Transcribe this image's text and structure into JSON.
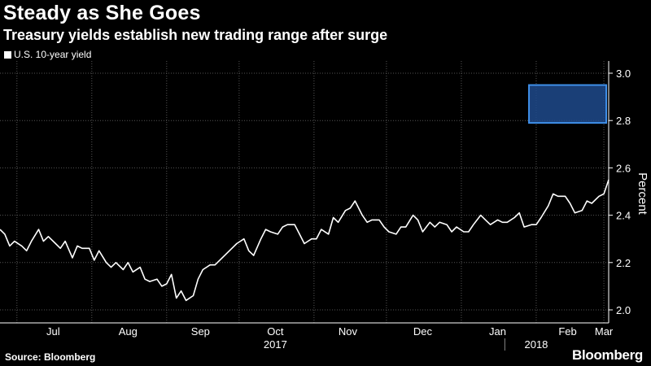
{
  "header": {
    "title": "Steady as She Goes",
    "subtitle": "Treasury yields establish new trading range after surge"
  },
  "legend": {
    "label": "U.S. 10-year yield"
  },
  "footer": {
    "source": "Source: Bloomberg",
    "brand": "Bloomberg"
  },
  "colors": {
    "background": "#000000",
    "line": "#ffffff",
    "grid": "#555555",
    "highlight_fill": "#1e4a8c",
    "highlight_stroke": "#3f8fe8"
  },
  "chart_data": {
    "type": "line",
    "title": "Steady as She Goes",
    "subtitle": "Treasury yields establish new trading range after surge",
    "ylabel": "Percent",
    "ylim": [
      2.0,
      3.0
    ],
    "yticks": [
      "2.0",
      "2.2",
      "2.4",
      "2.6",
      "2.8",
      "3.0"
    ],
    "xlim": [
      "2017-06-24",
      "2018-03-03"
    ],
    "grid": true,
    "legend_position": "top-left",
    "month_labels": [
      {
        "label": "Jul",
        "date": "2017-07-16"
      },
      {
        "label": "Aug",
        "date": "2017-08-16"
      },
      {
        "label": "Sep",
        "date": "2017-09-15"
      },
      {
        "label": "Oct",
        "date": "2017-10-16"
      },
      {
        "label": "Nov",
        "date": "2017-11-15"
      },
      {
        "label": "Dec",
        "date": "2017-12-16"
      },
      {
        "label": "Jan",
        "date": "2018-01-16"
      },
      {
        "label": "Feb",
        "date": "2018-02-14"
      },
      {
        "label": "Mar",
        "date": "2018-03-01"
      }
    ],
    "year_labels": [
      {
        "label": "2017",
        "date": "2017-10-16"
      },
      {
        "label": "2018",
        "date": "2018-02-01"
      }
    ],
    "year_divider": "2018-01-19",
    "highlight_range": {
      "start": "2018-01-29",
      "end": "2018-03-02",
      "ymin": 2.79,
      "ymax": 2.95
    },
    "series": [
      {
        "name": "U.S. 10-year yield",
        "points": [
          [
            "2017-06-24",
            2.34
          ],
          [
            "2017-06-26",
            2.32
          ],
          [
            "2017-06-28",
            2.27
          ],
          [
            "2017-06-30",
            2.29
          ],
          [
            "2017-07-03",
            2.27
          ],
          [
            "2017-07-05",
            2.25
          ],
          [
            "2017-07-07",
            2.29
          ],
          [
            "2017-07-10",
            2.34
          ],
          [
            "2017-07-12",
            2.29
          ],
          [
            "2017-07-14",
            2.31
          ],
          [
            "2017-07-17",
            2.28
          ],
          [
            "2017-07-19",
            2.26
          ],
          [
            "2017-07-21",
            2.29
          ],
          [
            "2017-07-24",
            2.22
          ],
          [
            "2017-07-26",
            2.27
          ],
          [
            "2017-07-28",
            2.26
          ],
          [
            "2017-07-31",
            2.26
          ],
          [
            "2017-08-02",
            2.21
          ],
          [
            "2017-08-04",
            2.25
          ],
          [
            "2017-08-07",
            2.2
          ],
          [
            "2017-08-09",
            2.18
          ],
          [
            "2017-08-11",
            2.2
          ],
          [
            "2017-08-14",
            2.17
          ],
          [
            "2017-08-16",
            2.2
          ],
          [
            "2017-08-18",
            2.16
          ],
          [
            "2017-08-21",
            2.18
          ],
          [
            "2017-08-23",
            2.13
          ],
          [
            "2017-08-25",
            2.12
          ],
          [
            "2017-08-28",
            2.13
          ],
          [
            "2017-08-30",
            2.1
          ],
          [
            "2017-09-01",
            2.11
          ],
          [
            "2017-09-03",
            2.15
          ],
          [
            "2017-09-05",
            2.05
          ],
          [
            "2017-09-07",
            2.08
          ],
          [
            "2017-09-09",
            2.04
          ],
          [
            "2017-09-12",
            2.06
          ],
          [
            "2017-09-14",
            2.13
          ],
          [
            "2017-09-16",
            2.17
          ],
          [
            "2017-09-19",
            2.19
          ],
          [
            "2017-09-21",
            2.19
          ],
          [
            "2017-09-23",
            2.21
          ],
          [
            "2017-09-26",
            2.24
          ],
          [
            "2017-09-28",
            2.26
          ],
          [
            "2017-09-30",
            2.28
          ],
          [
            "2017-10-03",
            2.3
          ],
          [
            "2017-10-05",
            2.25
          ],
          [
            "2017-10-07",
            2.23
          ],
          [
            "2017-10-10",
            2.3
          ],
          [
            "2017-10-12",
            2.34
          ],
          [
            "2017-10-14",
            2.33
          ],
          [
            "2017-10-17",
            2.32
          ],
          [
            "2017-10-19",
            2.35
          ],
          [
            "2017-10-21",
            2.36
          ],
          [
            "2017-10-24",
            2.36
          ],
          [
            "2017-10-26",
            2.32
          ],
          [
            "2017-10-28",
            2.28
          ],
          [
            "2017-10-31",
            2.3
          ],
          [
            "2017-11-02",
            2.3
          ],
          [
            "2017-11-04",
            2.34
          ],
          [
            "2017-11-07",
            2.32
          ],
          [
            "2017-11-09",
            2.39
          ],
          [
            "2017-11-11",
            2.37
          ],
          [
            "2017-11-14",
            2.42
          ],
          [
            "2017-11-16",
            2.43
          ],
          [
            "2017-11-18",
            2.46
          ],
          [
            "2017-11-21",
            2.4
          ],
          [
            "2017-11-23",
            2.37
          ],
          [
            "2017-11-25",
            2.38
          ],
          [
            "2017-11-28",
            2.38
          ],
          [
            "2017-11-30",
            2.35
          ],
          [
            "2017-12-02",
            2.33
          ],
          [
            "2017-12-05",
            2.32
          ],
          [
            "2017-12-07",
            2.35
          ],
          [
            "2017-12-09",
            2.35
          ],
          [
            "2017-12-12",
            2.4
          ],
          [
            "2017-12-14",
            2.38
          ],
          [
            "2017-12-16",
            2.33
          ],
          [
            "2017-12-19",
            2.37
          ],
          [
            "2017-12-21",
            2.35
          ],
          [
            "2017-12-23",
            2.37
          ],
          [
            "2017-12-26",
            2.36
          ],
          [
            "2017-12-28",
            2.33
          ],
          [
            "2017-12-30",
            2.35
          ],
          [
            "2018-01-02",
            2.33
          ],
          [
            "2018-01-04",
            2.33
          ],
          [
            "2018-01-06",
            2.36
          ],
          [
            "2018-01-09",
            2.4
          ],
          [
            "2018-01-11",
            2.38
          ],
          [
            "2018-01-13",
            2.36
          ],
          [
            "2018-01-16",
            2.38
          ],
          [
            "2018-01-18",
            2.37
          ],
          [
            "2018-01-20",
            2.37
          ],
          [
            "2018-01-23",
            2.39
          ],
          [
            "2018-01-25",
            2.41
          ],
          [
            "2018-01-27",
            2.35
          ],
          [
            "2018-01-30",
            2.36
          ],
          [
            "2018-02-01",
            2.36
          ],
          [
            "2018-02-03",
            2.39
          ],
          [
            "2018-02-06",
            2.44
          ],
          [
            "2018-02-08",
            2.49
          ],
          [
            "2018-02-10",
            2.48
          ],
          [
            "2018-02-13",
            2.48
          ],
          [
            "2018-02-15",
            2.45
          ],
          [
            "2018-02-17",
            2.41
          ],
          [
            "2018-02-20",
            2.42
          ],
          [
            "2018-02-22",
            2.46
          ],
          [
            "2018-02-24",
            2.45
          ],
          [
            "2018-02-27",
            2.48
          ],
          [
            "2018-03-01",
            2.49
          ],
          [
            "2018-03-03",
            2.55
          ]
        ]
      }
    ]
  }
}
